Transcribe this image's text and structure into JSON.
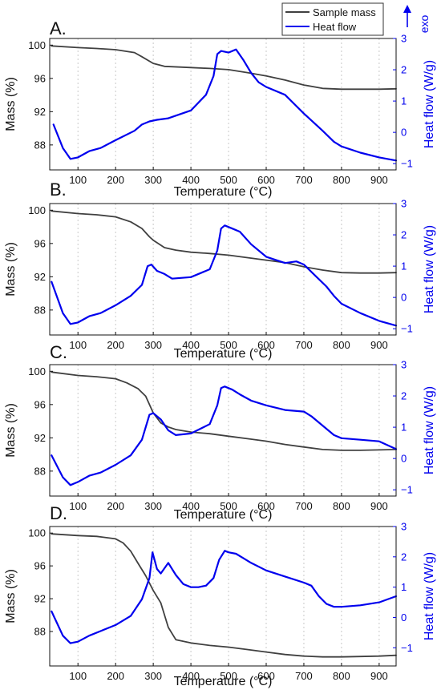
{
  "legend": {
    "mass_label": "Sample mass",
    "heat_label": "Heat flow",
    "exo_label": "exo"
  },
  "colors": {
    "mass": "#404040",
    "heat": "#0000ee",
    "grid": "#c8c8c8",
    "axis": "#111111"
  },
  "chart_data": [
    {
      "type": "line",
      "panel_label": "A.",
      "xlabel": "Temperature (°C)",
      "ylabel": "Mass (%)",
      "ylabel_right": "Heat flow (W/g)",
      "xlim": [
        25,
        945
      ],
      "ylim": [
        85.0,
        100.8
      ],
      "ylim_right": [
        -1.2,
        3.0
      ],
      "x_ticks": [
        100,
        200,
        300,
        400,
        500,
        600,
        700,
        800,
        900
      ],
      "y_ticks": [
        88,
        92,
        96,
        100
      ],
      "y_ticks_right": [
        -1,
        0,
        1,
        2,
        3
      ],
      "grid": "vertical dotted",
      "series": [
        {
          "name": "Sample mass",
          "axis": "left",
          "x": [
            30,
            100,
            150,
            200,
            250,
            270,
            300,
            330,
            400,
            450,
            500,
            550,
            600,
            650,
            700,
            750,
            800,
            850,
            900,
            945
          ],
          "y": [
            99.9,
            99.7,
            99.6,
            99.45,
            99.1,
            98.6,
            97.8,
            97.45,
            97.3,
            97.2,
            97.05,
            96.7,
            96.3,
            95.8,
            95.2,
            94.8,
            94.7,
            94.7,
            94.7,
            94.75
          ]
        },
        {
          "name": "Heat flow",
          "axis": "right",
          "x": [
            35,
            60,
            80,
            100,
            130,
            160,
            200,
            250,
            270,
            290,
            310,
            340,
            400,
            440,
            460,
            470,
            480,
            500,
            520,
            540,
            560,
            580,
            600,
            650,
            700,
            750,
            780,
            800,
            850,
            900,
            945
          ],
          "y": [
            0.25,
            -0.5,
            -0.85,
            -0.8,
            -0.6,
            -0.5,
            -0.25,
            0.05,
            0.25,
            0.35,
            0.4,
            0.45,
            0.7,
            1.2,
            1.8,
            2.5,
            2.6,
            2.55,
            2.65,
            2.3,
            1.9,
            1.6,
            1.45,
            1.2,
            0.6,
            0.05,
            -0.3,
            -0.45,
            -0.65,
            -0.8,
            -0.9
          ]
        }
      ]
    },
    {
      "type": "line",
      "panel_label": "B.",
      "xlabel": "Temperature (°C)",
      "ylabel": "Mass (%)",
      "ylabel_right": "Heat flow (W/g)",
      "xlim": [
        25,
        945
      ],
      "ylim": [
        85.0,
        100.8
      ],
      "ylim_right": [
        -1.2,
        3.0
      ],
      "x_ticks": [
        100,
        200,
        300,
        400,
        500,
        600,
        700,
        800,
        900
      ],
      "y_ticks": [
        88,
        92,
        96,
        100
      ],
      "y_ticks_right": [
        -1,
        0,
        1,
        2,
        3
      ],
      "grid": "vertical dotted",
      "series": [
        {
          "name": "Sample mass",
          "axis": "left",
          "x": [
            30,
            100,
            150,
            200,
            240,
            270,
            290,
            300,
            330,
            360,
            400,
            450,
            500,
            550,
            600,
            650,
            700,
            750,
            800,
            850,
            900,
            945
          ],
          "y": [
            99.9,
            99.6,
            99.45,
            99.2,
            98.6,
            97.8,
            96.8,
            96.4,
            95.5,
            95.2,
            94.95,
            94.8,
            94.6,
            94.3,
            94.0,
            93.7,
            93.2,
            92.8,
            92.5,
            92.45,
            92.45,
            92.5
          ]
        },
        {
          "name": "Heat flow",
          "axis": "right",
          "x": [
            30,
            60,
            80,
            100,
            130,
            160,
            200,
            240,
            270,
            285,
            295,
            310,
            330,
            350,
            400,
            450,
            470,
            480,
            490,
            510,
            530,
            560,
            600,
            650,
            680,
            700,
            730,
            760,
            780,
            800,
            850,
            900,
            945
          ],
          "y": [
            0.5,
            -0.5,
            -0.85,
            -0.8,
            -0.6,
            -0.5,
            -0.25,
            0.05,
            0.4,
            1.0,
            1.05,
            0.85,
            0.75,
            0.6,
            0.65,
            0.9,
            1.5,
            2.2,
            2.3,
            2.2,
            2.1,
            1.7,
            1.3,
            1.1,
            1.15,
            1.05,
            0.7,
            0.35,
            0.05,
            -0.2,
            -0.5,
            -0.75,
            -0.9
          ]
        }
      ]
    },
    {
      "type": "line",
      "panel_label": "C.",
      "xlabel": "Temperature (°C)",
      "ylabel": "Mass (%)",
      "ylabel_right": "Heat flow (W/g)",
      "xlim": [
        25,
        945
      ],
      "ylim": [
        85.0,
        100.8
      ],
      "ylim_right": [
        -1.2,
        3.0
      ],
      "x_ticks": [
        100,
        200,
        300,
        400,
        500,
        600,
        700,
        800,
        900
      ],
      "y_ticks": [
        88,
        92,
        96,
        100
      ],
      "y_ticks_right": [
        -1,
        0,
        1,
        2,
        3
      ],
      "grid": "vertical dotted",
      "series": [
        {
          "name": "Sample mass",
          "axis": "left",
          "x": [
            30,
            100,
            150,
            200,
            230,
            260,
            280,
            300,
            320,
            340,
            360,
            400,
            450,
            500,
            550,
            600,
            650,
            700,
            750,
            800,
            850,
            900,
            945
          ],
          "y": [
            99.9,
            99.5,
            99.35,
            99.1,
            98.6,
            97.9,
            97.0,
            95.0,
            93.8,
            93.3,
            93.0,
            92.7,
            92.5,
            92.2,
            91.9,
            91.6,
            91.2,
            90.9,
            90.6,
            90.5,
            90.5,
            90.55,
            90.6
          ]
        },
        {
          "name": "Heat flow",
          "axis": "right",
          "x": [
            30,
            60,
            80,
            100,
            130,
            160,
            200,
            240,
            270,
            290,
            300,
            320,
            340,
            360,
            400,
            450,
            470,
            480,
            490,
            510,
            530,
            560,
            600,
            650,
            700,
            720,
            750,
            780,
            800,
            850,
            900,
            945
          ],
          "y": [
            0.1,
            -0.6,
            -0.85,
            -0.75,
            -0.55,
            -0.45,
            -0.2,
            0.1,
            0.6,
            1.4,
            1.45,
            1.25,
            0.9,
            0.75,
            0.8,
            1.1,
            1.7,
            2.25,
            2.3,
            2.2,
            2.05,
            1.85,
            1.7,
            1.55,
            1.5,
            1.35,
            1.05,
            0.75,
            0.65,
            0.6,
            0.55,
            0.3
          ]
        }
      ]
    },
    {
      "type": "line",
      "panel_label": "D.",
      "xlabel": "Temperature (°C)",
      "ylabel": "Mass (%)",
      "ylabel_right": "Heat flow (W/g)",
      "xlim": [
        25,
        945
      ],
      "ylim": [
        83.8,
        100.8
      ],
      "ylim_right": [
        -1.6,
        3.0
      ],
      "x_ticks": [
        100,
        200,
        300,
        400,
        500,
        600,
        700,
        800,
        900
      ],
      "y_ticks": [
        88,
        92,
        96,
        100
      ],
      "y_ticks_right": [
        -1,
        0,
        1,
        2,
        3
      ],
      "grid": "vertical dotted",
      "series": [
        {
          "name": "Sample mass",
          "axis": "left",
          "x": [
            30,
            100,
            150,
            200,
            220,
            240,
            260,
            280,
            300,
            320,
            340,
            360,
            400,
            450,
            500,
            550,
            600,
            650,
            700,
            750,
            800,
            850,
            900,
            945
          ],
          "y": [
            99.9,
            99.7,
            99.6,
            99.3,
            98.8,
            97.8,
            96.3,
            94.8,
            93.0,
            91.5,
            88.5,
            87.0,
            86.6,
            86.3,
            86.1,
            85.8,
            85.5,
            85.2,
            85.0,
            84.9,
            84.9,
            84.95,
            85.0,
            85.1
          ]
        },
        {
          "name": "Heat flow",
          "axis": "right",
          "x": [
            30,
            60,
            80,
            100,
            130,
            160,
            200,
            240,
            270,
            290,
            298,
            310,
            320,
            340,
            360,
            380,
            400,
            420,
            440,
            460,
            475,
            490,
            500,
            520,
            540,
            560,
            600,
            650,
            700,
            720,
            740,
            760,
            780,
            800,
            850,
            900,
            945
          ],
          "y": [
            0.2,
            -0.6,
            -0.85,
            -0.8,
            -0.6,
            -0.45,
            -0.25,
            0.05,
            0.6,
            1.3,
            2.15,
            1.6,
            1.45,
            1.8,
            1.4,
            1.1,
            1.0,
            1.0,
            1.05,
            1.3,
            1.9,
            2.2,
            2.15,
            2.1,
            1.95,
            1.8,
            1.55,
            1.35,
            1.15,
            1.05,
            0.7,
            0.45,
            0.35,
            0.35,
            0.4,
            0.5,
            0.7
          ]
        }
      ]
    }
  ]
}
